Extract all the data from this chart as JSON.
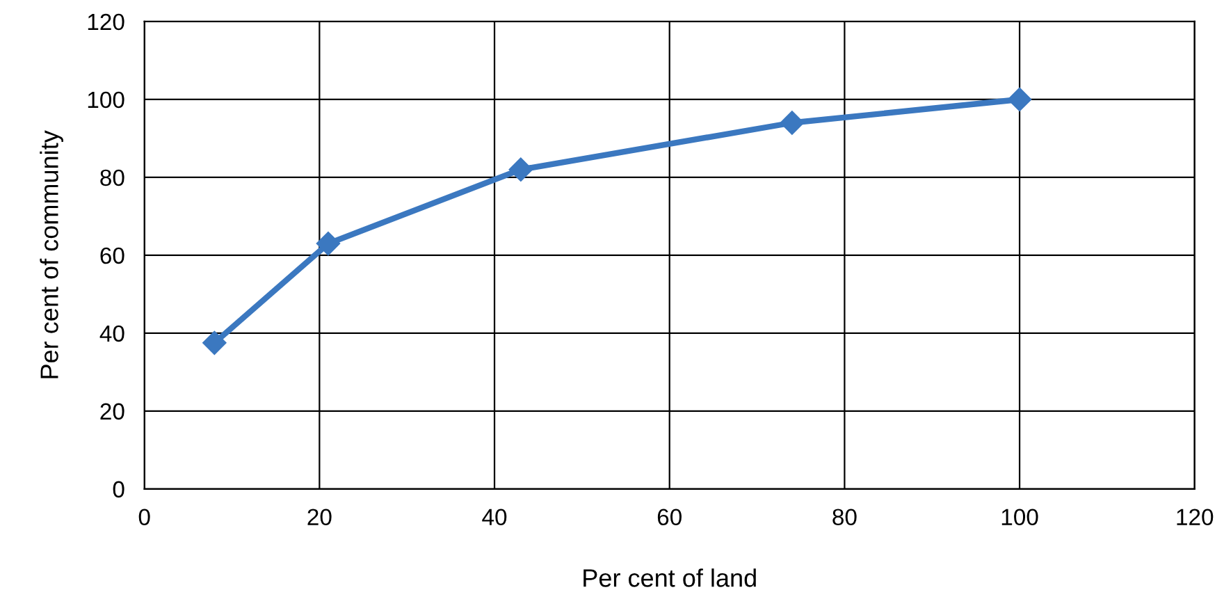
{
  "chart_data": {
    "type": "line",
    "xlabel": "Per cent of land",
    "ylabel": "Per cent of community",
    "x": [
      8,
      21,
      43,
      74,
      100
    ],
    "series": [
      {
        "color": "#3b78c0",
        "values": [
          37.5,
          63,
          82,
          94,
          100
        ]
      }
    ],
    "xlim": [
      0,
      120
    ],
    "xticks": [
      0,
      20,
      40,
      60,
      80,
      100,
      120
    ],
    "ylim": [
      0,
      120
    ],
    "yticks": [
      0,
      20,
      40,
      60,
      80,
      100,
      120
    ],
    "grid": true,
    "marker": "diamond",
    "line_style": "solid"
  }
}
